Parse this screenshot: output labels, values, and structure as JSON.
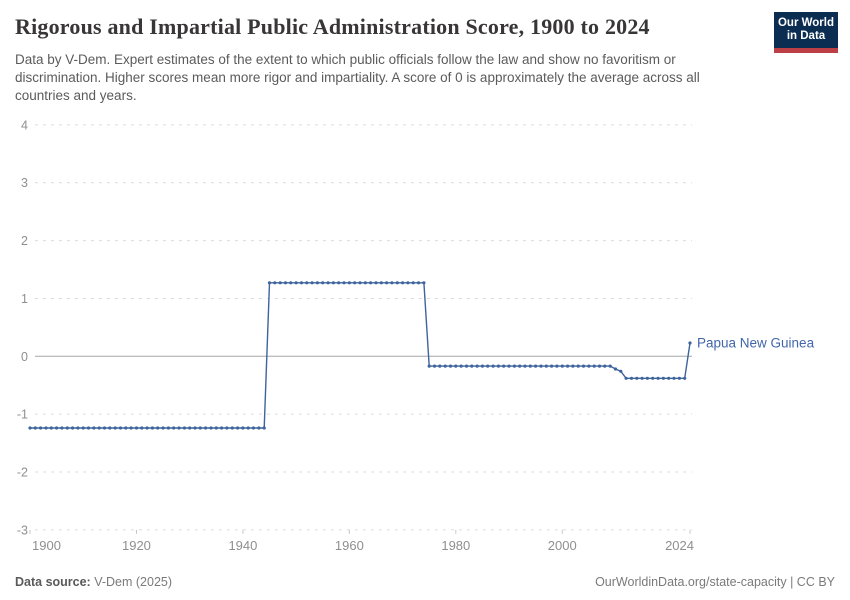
{
  "header": {
    "title": "Rigorous and Impartial Public Administration Score, 1900 to 2024",
    "subtitle": "Data by V-Dem. Expert estimates of the extent to which public officials follow the law and show no favoritism or discrimination. Higher scores mean more rigor and impartiality. A score of 0 is approximately the average across all countries and years.",
    "logo": {
      "line1": "Our World",
      "line2": "in Data"
    }
  },
  "footer": {
    "source_label": "Data source:",
    "source_value": " V-Dem (2025)",
    "link": "OurWorldinData.org/state-capacity | CC BY"
  },
  "colors": {
    "grid": "#dcdcdc",
    "zero_line": "#a5a5a5",
    "tick_text": "#8f8f8f",
    "x_tick_mark": "#c6c6c6",
    "line": "#3d649c",
    "entity_label": "#4266ab",
    "logo_bg": "#0c2d52",
    "logo_red": "#bc3f45"
  },
  "chart_data": {
    "type": "line",
    "title": "Rigorous and Impartial Public Administration Score, 1900 to 2024",
    "xlabel": "",
    "ylabel": "",
    "xlim": [
      1900,
      2024
    ],
    "ylim": [
      -3,
      4
    ],
    "grid": "horizontal dashed gridlines; solid gray line at y=0",
    "legend_position": "end-of-line label",
    "x_ticks": [
      1900,
      1920,
      1940,
      1960,
      1980,
      2000,
      2024
    ],
    "y_ticks": [
      4,
      3,
      2,
      1,
      0,
      -1,
      -2,
      -3
    ],
    "marker": "point at every year",
    "series": [
      {
        "name": "Papua New Guinea",
        "color": "#3d649c",
        "segments": [
          {
            "from": 1900,
            "to": 1944,
            "value": -1.24
          },
          {
            "from": 1945,
            "to": 1974,
            "value": 1.27
          },
          {
            "from": 1975,
            "to": 2009,
            "value": -0.17
          },
          {
            "from": 2010,
            "to": 2010,
            "value": -0.22
          },
          {
            "from": 2011,
            "to": 2011,
            "value": -0.26
          },
          {
            "from": 2012,
            "to": 2023,
            "value": -0.38
          },
          {
            "from": 2024,
            "to": 2024,
            "value": 0.23
          }
        ]
      }
    ]
  }
}
